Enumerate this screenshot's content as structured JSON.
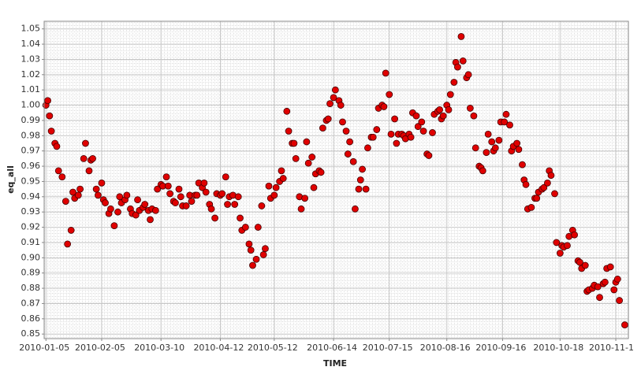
{
  "chart_data": {
    "type": "scatter",
    "x_label": "TIME",
    "y_label": "eq_all",
    "color": "#e00000",
    "xlim": [
      "2010-01-04",
      "2010-11-25"
    ],
    "xticks": [
      "2010-01-05",
      "2010-02-05",
      "2010-03-10",
      "2010-04-12",
      "2010-05-12",
      "2010-06-14",
      "2010-07-15",
      "2010-08-16",
      "2010-09-16",
      "2010-10-18",
      {
        "value": "2010-11-18",
        "label": "2010-11-1"
      }
    ],
    "ylim": [
      0.847,
      1.055
    ],
    "yticks": [
      0.85,
      0.86,
      0.87,
      0.88,
      0.89,
      {
        "value": 0.9,
        "label": "0.90"
      },
      0.91,
      0.92,
      0.93,
      0.94,
      0.95,
      0.96,
      0.97,
      0.98,
      0.99,
      {
        "value": 1,
        "label": "1.00"
      },
      1.01,
      1.02,
      1.03,
      1.04,
      1.05
    ],
    "grid": true,
    "x": [
      "2010-01-05",
      "2010-01-06",
      "2010-01-07",
      "2010-01-08",
      "2010-01-10",
      "2010-01-11",
      "2010-01-12",
      "2010-01-14",
      "2010-01-16",
      "2010-01-17",
      "2010-01-19",
      "2010-01-20",
      "2010-01-21",
      "2010-01-23",
      "2010-01-24",
      "2010-01-26",
      "2010-01-27",
      "2010-01-29",
      "2010-01-30",
      "2010-01-31",
      "2010-02-02",
      "2010-02-03",
      "2010-02-05",
      "2010-02-06",
      "2010-02-07",
      "2010-02-09",
      "2010-02-10",
      "2010-02-12",
      "2010-02-14",
      "2010-02-15",
      "2010-02-16",
      "2010-02-18",
      "2010-02-19",
      "2010-02-21",
      "2010-02-22",
      "2010-02-24",
      "2010-02-25",
      "2010-02-26",
      "2010-02-28",
      "2010-03-01",
      "2010-03-03",
      "2010-03-04",
      "2010-03-05",
      "2010-03-07",
      "2010-03-08",
      "2010-03-10",
      "2010-03-11",
      "2010-03-13",
      "2010-03-14",
      "2010-03-15",
      "2010-03-17",
      "2010-03-18",
      "2010-03-20",
      "2010-03-21",
      "2010-03-22",
      "2010-03-24",
      "2010-03-26",
      "2010-03-27",
      "2010-03-29",
      "2010-03-30",
      "2010-03-31",
      "2010-04-02",
      "2010-04-03",
      "2010-04-04",
      "2010-04-06",
      "2010-04-07",
      "2010-04-09",
      "2010-04-10",
      "2010-04-12",
      "2010-04-13",
      "2010-04-15",
      "2010-04-16",
      "2010-04-17",
      "2010-04-19",
      "2010-04-20",
      "2010-04-22",
      "2010-04-23",
      "2010-04-24",
      "2010-04-26",
      "2010-04-28",
      "2010-04-29",
      "2010-04-30",
      "2010-05-02",
      "2010-05-03",
      "2010-05-05",
      "2010-05-06",
      "2010-05-07",
      "2010-05-09",
      "2010-05-10",
      "2010-05-12",
      "2010-05-13",
      "2010-05-15",
      "2010-05-16",
      "2010-05-17",
      "2010-05-19",
      "2010-05-20",
      "2010-05-22",
      "2010-05-23",
      "2010-05-24",
      "2010-05-26",
      "2010-05-27",
      "2010-05-29",
      "2010-05-30",
      "2010-05-31",
      "2010-06-02",
      "2010-06-03",
      "2010-06-04",
      "2010-06-06",
      "2010-06-07",
      "2010-06-08",
      "2010-06-10",
      "2010-06-11",
      "2010-06-12",
      "2010-06-14",
      "2010-06-15",
      "2010-06-17",
      "2010-06-18",
      "2010-06-19",
      "2010-06-21",
      "2010-06-22",
      "2010-06-23",
      "2010-06-25",
      "2010-06-26",
      "2010-06-28",
      "2010-06-29",
      "2010-06-30",
      "2010-07-02",
      "2010-07-03",
      "2010-07-05",
      "2010-07-06",
      "2010-07-08",
      "2010-07-09",
      "2010-07-11",
      "2010-07-12",
      "2010-07-13",
      "2010-07-15",
      "2010-07-16",
      "2010-07-18",
      "2010-07-19",
      "2010-07-20",
      "2010-07-22",
      "2010-07-23",
      "2010-07-24",
      "2010-07-26",
      "2010-07-27",
      "2010-07-28",
      "2010-07-30",
      "2010-07-31",
      "2010-08-02",
      "2010-08-03",
      "2010-08-05",
      "2010-08-06",
      "2010-08-08",
      "2010-08-09",
      "2010-08-11",
      "2010-08-12",
      "2010-08-13",
      "2010-08-14",
      "2010-08-16",
      "2010-08-17",
      "2010-08-18",
      "2010-08-20",
      "2010-08-21",
      "2010-08-22",
      "2010-08-24",
      "2010-08-25",
      "2010-08-27",
      "2010-08-28",
      "2010-08-29",
      "2010-08-31",
      "2010-09-01",
      "2010-09-03",
      "2010-09-04",
      "2010-09-05",
      "2010-09-07",
      "2010-09-08",
      "2010-09-10",
      "2010-09-11",
      "2010-09-12",
      "2010-09-14",
      "2010-09-15",
      "2010-09-17",
      "2010-09-18",
      "2010-09-20",
      "2010-09-21",
      "2010-09-22",
      "2010-09-24",
      "2010-09-25",
      "2010-09-27",
      "2010-09-28",
      "2010-09-29",
      "2010-09-30",
      "2010-10-02",
      "2010-10-04",
      "2010-10-05",
      "2010-10-06",
      "2010-10-08",
      "2010-10-09",
      "2010-10-11",
      "2010-10-12",
      "2010-10-13",
      "2010-10-15",
      "2010-10-16",
      "2010-10-18",
      "2010-10-19",
      "2010-10-20",
      "2010-10-22",
      "2010-10-23",
      "2010-10-25",
      "2010-10-26",
      "2010-10-28",
      "2010-10-29",
      "2010-10-30",
      "2010-11-01",
      "2010-11-02",
      "2010-11-03",
      "2010-11-05",
      "2010-11-06",
      "2010-11-08",
      "2010-11-09",
      "2010-11-11",
      "2010-11-12",
      "2010-11-13",
      "2010-11-15",
      "2010-11-17",
      "2010-11-18",
      "2010-11-19",
      "2010-11-20",
      "2010-11-23"
    ],
    "values": [
      1.0,
      1.003,
      0.993,
      0.983,
      0.975,
      0.973,
      0.957,
      0.953,
      0.937,
      0.909,
      0.918,
      0.943,
      0.939,
      0.941,
      0.945,
      0.965,
      0.975,
      0.957,
      0.964,
      0.965,
      0.945,
      0.941,
      0.949,
      0.938,
      0.936,
      0.929,
      0.932,
      0.921,
      0.93,
      0.94,
      0.936,
      0.938,
      0.941,
      0.932,
      0.929,
      0.928,
      0.938,
      0.931,
      0.933,
      0.935,
      0.931,
      0.925,
      0.932,
      0.931,
      0.945,
      0.948,
      0.947,
      0.953,
      0.947,
      0.942,
      0.937,
      0.936,
      0.945,
      0.94,
      0.934,
      0.934,
      0.941,
      0.937,
      0.941,
      0.941,
      0.949,
      0.946,
      0.949,
      0.943,
      0.935,
      0.932,
      0.926,
      0.942,
      0.941,
      0.942,
      0.953,
      0.935,
      0.94,
      0.941,
      0.935,
      0.94,
      0.926,
      0.918,
      0.92,
      0.909,
      0.905,
      0.895,
      0.899,
      0.92,
      0.934,
      0.902,
      0.906,
      0.947,
      0.939,
      0.941,
      0.946,
      0.95,
      0.957,
      0.952,
      0.996,
      0.983,
      0.975,
      0.975,
      0.965,
      0.94,
      0.932,
      0.939,
      0.976,
      0.962,
      0.966,
      0.946,
      0.955,
      0.957,
      0.956,
      0.985,
      0.99,
      0.991,
      1.001,
      1.005,
      1.01,
      1.003,
      1.0,
      0.989,
      0.983,
      0.968,
      0.976,
      0.963,
      0.932,
      0.945,
      0.951,
      0.958,
      0.945,
      0.972,
      0.979,
      0.979,
      0.984,
      0.998,
      1.0,
      0.999,
      1.021,
      1.007,
      0.981,
      0.991,
      0.975,
      0.981,
      0.981,
      0.98,
      0.978,
      0.981,
      0.979,
      0.995,
      0.993,
      0.986,
      0.989,
      0.983,
      0.968,
      0.967,
      0.982,
      0.994,
      0.996,
      0.997,
      0.991,
      0.993,
      1.0,
      0.997,
      1.007,
      1.015,
      1.028,
      1.025,
      1.045,
      1.029,
      1.018,
      1.02,
      0.998,
      0.993,
      0.972,
      0.96,
      0.959,
      0.957,
      0.969,
      0.981,
      0.976,
      0.97,
      0.972,
      0.977,
      0.989,
      0.989,
      0.994,
      0.987,
      0.97,
      0.973,
      0.975,
      0.971,
      0.961,
      0.951,
      0.948,
      0.932,
      0.933,
      0.939,
      0.939,
      0.943,
      0.945,
      0.946,
      0.949,
      0.957,
      0.954,
      0.942,
      0.91,
      0.903,
      0.908,
      0.907,
      0.908,
      0.914,
      0.918,
      0.915,
      0.898,
      0.897,
      0.893,
      0.895,
      0.878,
      0.879,
      0.88,
      0.882,
      0.881,
      0.874,
      0.883,
      0.884,
      0.893,
      0.894,
      0.879,
      0.884,
      0.886,
      0.872,
      0.856
    ]
  }
}
